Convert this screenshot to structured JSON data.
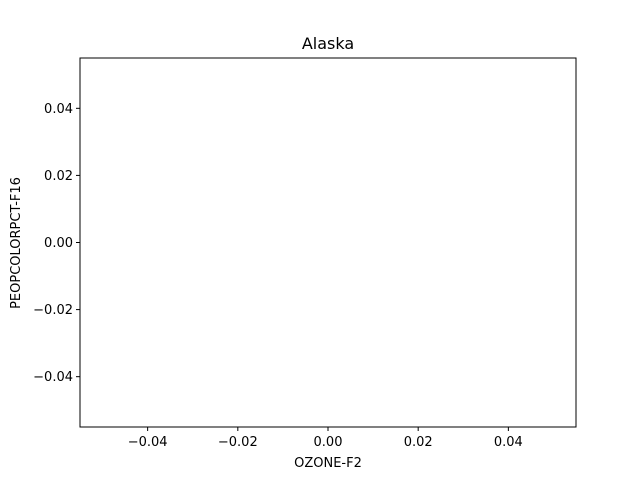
{
  "chart_data": {
    "type": "scatter",
    "title": "Alaska",
    "xlabel": "OZONE-F2",
    "ylabel": "PEOPCOLORPCT-F16",
    "xlim": [
      -0.055,
      0.055
    ],
    "ylim": [
      -0.055,
      0.055
    ],
    "x_ticks": [
      -0.04,
      -0.02,
      0.0,
      0.02,
      0.04
    ],
    "x_tick_labels": [
      "−0.04",
      "−0.02",
      "0.00",
      "0.02",
      "0.04"
    ],
    "y_ticks": [
      -0.04,
      -0.02,
      0.0,
      0.02,
      0.04
    ],
    "y_tick_labels": [
      "−0.04",
      "−0.02",
      "0.00",
      "0.02",
      "0.04"
    ],
    "series": [
      {
        "x": [],
        "y": []
      }
    ],
    "grid": false,
    "legend": "none"
  }
}
